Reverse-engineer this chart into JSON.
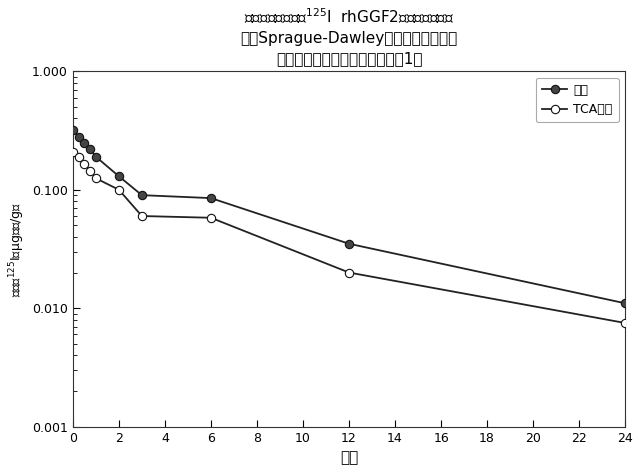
{
  "title": "静脈内経路による$^{125}$I  rhGGF2の単回投与後の\n雄性Sprague-Dawleyラットの血漿中の\n放射活性に関する平均濃度（群1）",
  "xlabel": "時間",
  "ylabel": "血漿中$^{125}$I（μg当量/g）",
  "legend_total": "合計",
  "legend_tca": "TCA沈殿",
  "total_x": [
    0,
    0.25,
    0.5,
    0.75,
    1,
    2,
    3,
    6,
    12,
    24
  ],
  "total_y": [
    0.32,
    0.28,
    0.25,
    0.22,
    0.19,
    0.13,
    0.09,
    0.085,
    0.035,
    0.011
  ],
  "tca_x": [
    0,
    0.25,
    0.5,
    0.75,
    1,
    2,
    3,
    6,
    12,
    24
  ],
  "tca_y": [
    0.21,
    0.19,
    0.165,
    0.145,
    0.125,
    0.1,
    0.06,
    0.058,
    0.02,
    0.0075
  ],
  "xlim": [
    0,
    24
  ],
  "ylim": [
    0.001,
    1.0
  ],
  "xticks": [
    0,
    2,
    4,
    6,
    8,
    10,
    12,
    14,
    16,
    18,
    20,
    22,
    24
  ],
  "background_color": "#ffffff"
}
